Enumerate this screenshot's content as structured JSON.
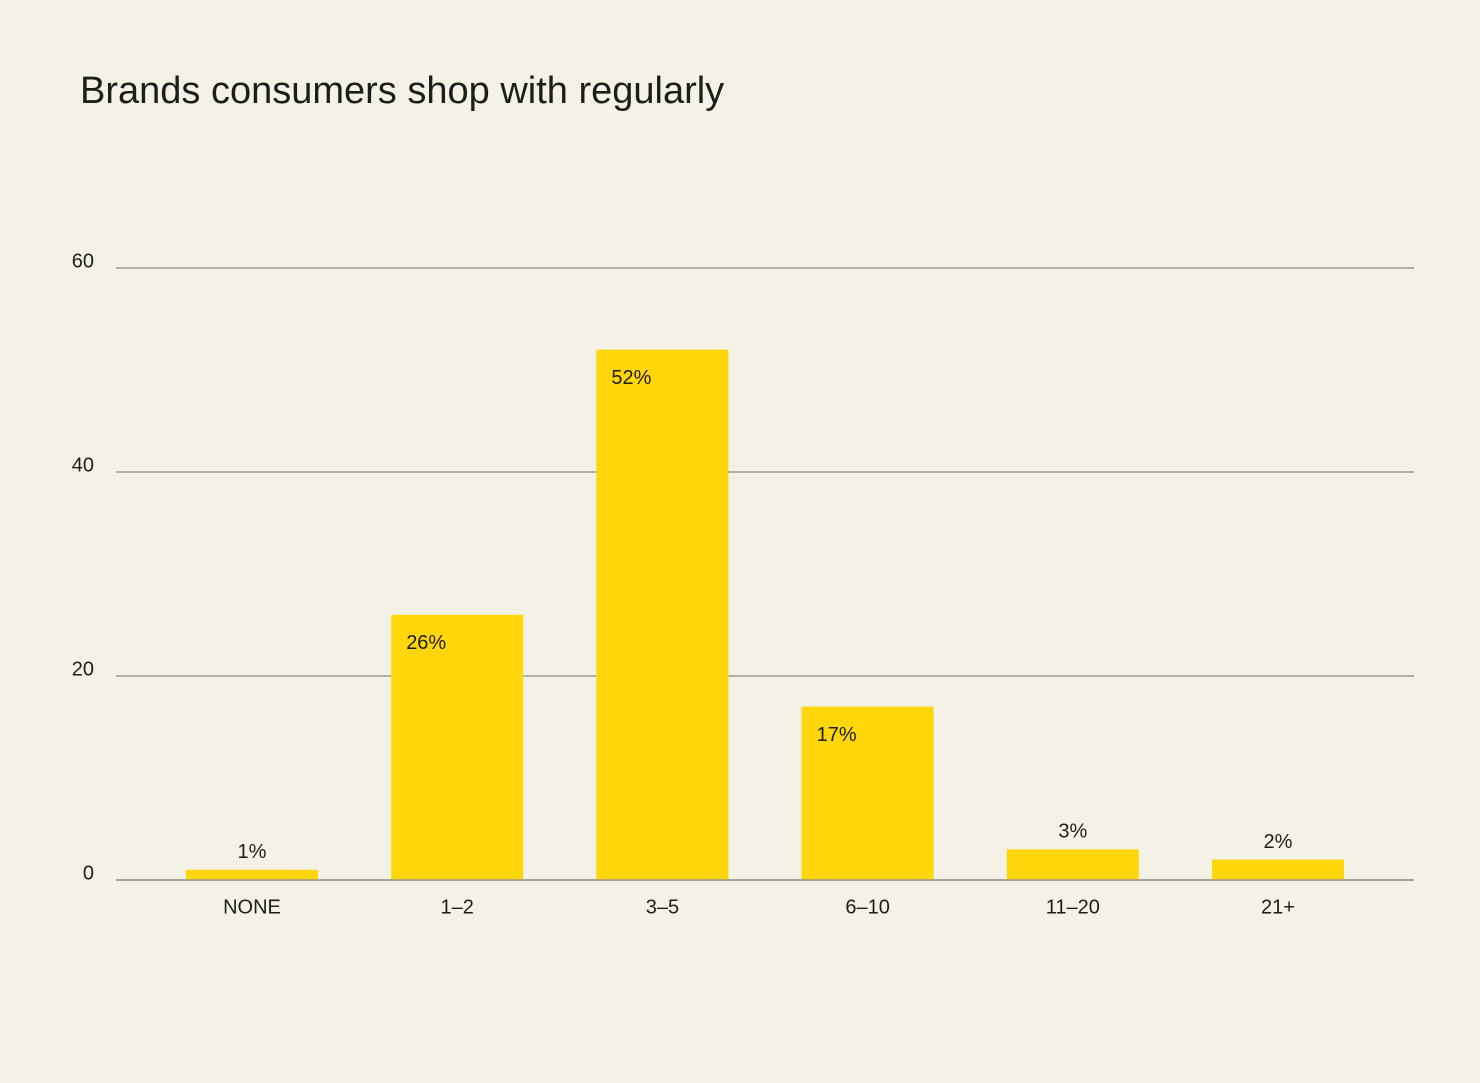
{
  "chart_data": {
    "type": "bar",
    "title": "Brands consumers shop with regularly",
    "categories": [
      "NONE",
      "1–2",
      "3–5",
      "6–10",
      "11–20",
      "21+"
    ],
    "values": [
      1,
      26,
      52,
      17,
      3,
      2
    ],
    "value_labels": [
      "1%",
      "26%",
      "52%",
      "17%",
      "3%",
      "2%"
    ],
    "color": "#ffd60a",
    "ylim": [
      0,
      60
    ],
    "yticks": [
      0,
      20,
      40,
      60
    ],
    "grid": true
  }
}
